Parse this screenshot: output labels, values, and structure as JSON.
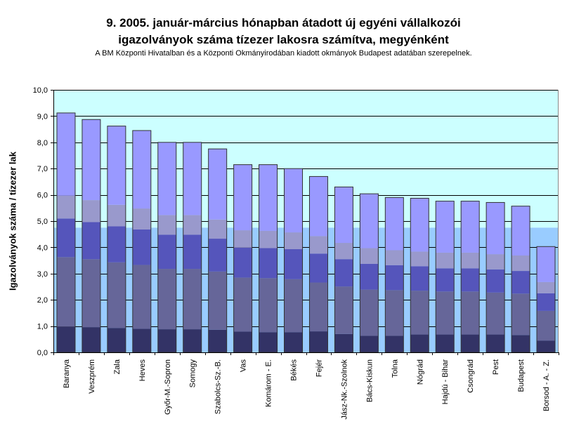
{
  "chart_data": {
    "type": "bar",
    "stacked": true,
    "title_line1": "9.   2005. január-március hónapban átadott új egyéni vállalkozói",
    "title_line2": "igazolványok száma tízezer lakosra számítva, megyénként",
    "subtitle": "A BM Központi Hivatalban és a Központi Okmányirodában kiadott okmányok Budapest adatában szerepelnek.",
    "ylabel": "Igazolványok száma / tízezer lak",
    "ylim": [
      0,
      10
    ],
    "yticks": [
      "0,0",
      "1,0",
      "2,0",
      "3,0",
      "4,0",
      "5,0",
      "6,0",
      "7,0",
      "8,0",
      "9,0",
      "10,0"
    ],
    "grid": true,
    "categories": [
      "Baranya",
      "Veszprém",
      "Zala",
      "Heves",
      "Győr-M.-Sopron",
      "Somogy",
      "Szabolcs-Sz.-B.",
      "Vas",
      "Komárom - E.",
      "Békés",
      "Fejér",
      "Jász-Nk.-Szolnok",
      "Bács-Kiskun",
      "Tolna",
      "Nógrád",
      "Hajdú - Bihar",
      "Csongrád",
      "Pest",
      "Budapest",
      "Borsod - A. - Z."
    ],
    "series": [
      {
        "values": [
          0.98,
          0.96,
          0.93,
          0.9,
          0.88,
          0.88,
          0.86,
          0.79,
          0.77,
          0.77,
          0.8,
          0.7,
          0.63,
          0.63,
          0.68,
          0.68,
          0.68,
          0.68,
          0.66,
          0.45
        ]
      },
      {
        "values": [
          2.65,
          2.59,
          2.5,
          2.43,
          2.3,
          2.3,
          2.22,
          2.06,
          2.06,
          2.02,
          1.86,
          1.81,
          1.76,
          1.74,
          1.67,
          1.64,
          1.64,
          1.6,
          1.58,
          1.13
        ]
      },
      {
        "values": [
          1.47,
          1.41,
          1.37,
          1.35,
          1.3,
          1.3,
          1.25,
          1.14,
          1.14,
          1.14,
          1.1,
          1.04,
          0.98,
          0.95,
          0.93,
          0.88,
          0.88,
          0.88,
          0.86,
          0.67
        ]
      },
      {
        "values": [
          0.87,
          0.84,
          0.82,
          0.8,
          0.75,
          0.75,
          0.73,
          0.66,
          0.66,
          0.64,
          0.67,
          0.62,
          0.6,
          0.57,
          0.56,
          0.6,
          0.6,
          0.58,
          0.59,
          0.43
        ]
      },
      {
        "values": [
          3.15,
          3.07,
          3.0,
          2.97,
          2.77,
          2.77,
          2.69,
          2.5,
          2.52,
          2.43,
          2.27,
          2.13,
          2.07,
          2.01,
          2.03,
          1.96,
          1.96,
          1.97,
          1.88,
          1.35
        ]
      }
    ],
    "totals": [
      9.12,
      8.87,
      8.62,
      8.45,
      8.0,
      8.0,
      7.75,
      7.15,
      7.15,
      7.0,
      6.7,
      6.3,
      6.04,
      5.9,
      5.87,
      5.76,
      5.76,
      5.71,
      5.57,
      4.03
    ],
    "reference_value": 4.75,
    "colors": {
      "series": [
        "#333366",
        "#666699",
        "#5555bb",
        "#9999cc",
        "#9999ff"
      ],
      "plot_bg_upper": "#ccffff",
      "plot_bg_lower": "#99ccff",
      "grid": "#000000",
      "bar_edge": "#333333"
    }
  }
}
